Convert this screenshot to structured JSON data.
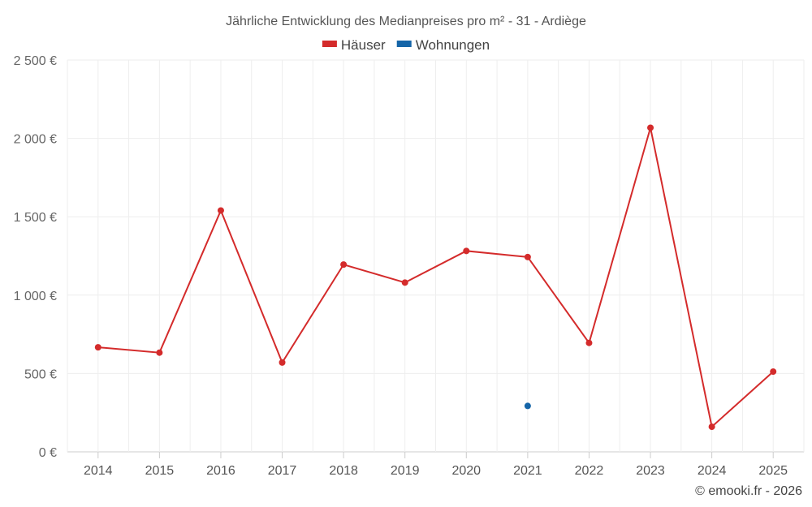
{
  "chart_data": {
    "type": "line",
    "title": "Jährliche Entwicklung des Medianpreises pro m² - 31 - Ardiège",
    "categories": [
      "2014",
      "2015",
      "2016",
      "2017",
      "2018",
      "2019",
      "2020",
      "2021",
      "2022",
      "2023",
      "2024",
      "2025"
    ],
    "series": [
      {
        "name": "Häuser",
        "color": "#d42b2b",
        "values": [
          667,
          633,
          1540,
          570,
          1195,
          1080,
          1282,
          1243,
          695,
          2068,
          160,
          512
        ]
      },
      {
        "name": "Wohnungen",
        "color": "#1565a8",
        "values": [
          null,
          null,
          null,
          null,
          null,
          null,
          null,
          293,
          null,
          null,
          null,
          null
        ]
      }
    ],
    "ylim": [
      0,
      2500
    ],
    "yticks": [
      0,
      500,
      1000,
      1500,
      2000,
      2500
    ],
    "ytick_labels": [
      "0 €",
      "500 €",
      "1 000 €",
      "1 500 €",
      "2 000 €",
      "2 500 €"
    ],
    "xlabel": "",
    "ylabel": "",
    "legend_position": "top-center",
    "grid": true
  },
  "credit": "© emooki.fr - 2026"
}
